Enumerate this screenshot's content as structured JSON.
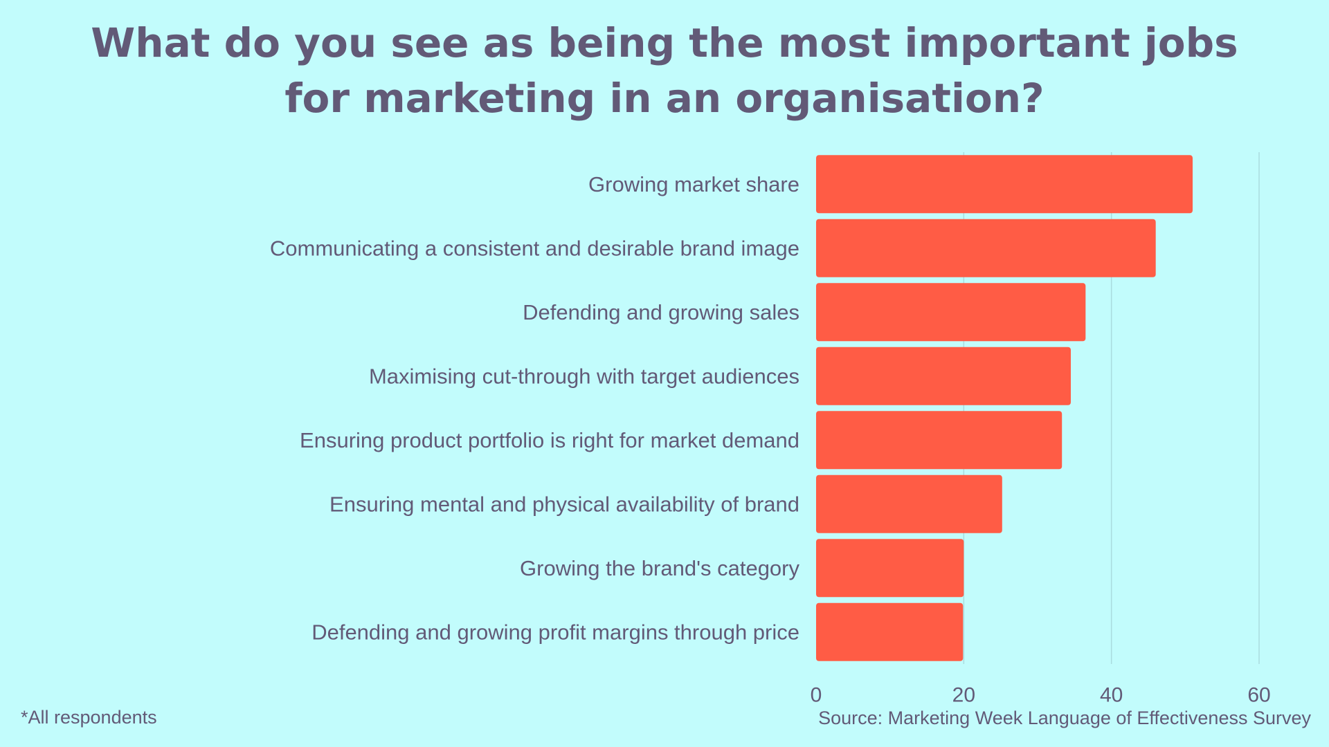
{
  "colors": {
    "background": "#C2FCFC",
    "text": "#625A77",
    "bar": "#FF5C45",
    "gridline": "#A9DCDE"
  },
  "chart_data": {
    "type": "bar",
    "orientation": "horizontal",
    "title": "What do you see as being the most important jobs for marketing in an organisation?",
    "xlabel": "",
    "ylabel": "",
    "categories": [
      "Growing market share",
      "Communicating a consistent and desirable brand image",
      "Defending and growing sales",
      "Maximising cut-through with target audiences",
      "Ensuring product portfolio is right for market demand",
      "Ensuring mental and physical availability of brand",
      "Growing the brand's category",
      "Defending and growing profit margins through price"
    ],
    "values": [
      51,
      46,
      36.5,
      34.5,
      33.3,
      25.2,
      20,
      19.9
    ],
    "xlim": [
      0,
      60
    ],
    "xticks": [
      0,
      20,
      40,
      60
    ],
    "grid": true,
    "legend": "none"
  },
  "footnote": "*All respondents",
  "source": "Source: Marketing Week Language of Effectiveness Survey"
}
